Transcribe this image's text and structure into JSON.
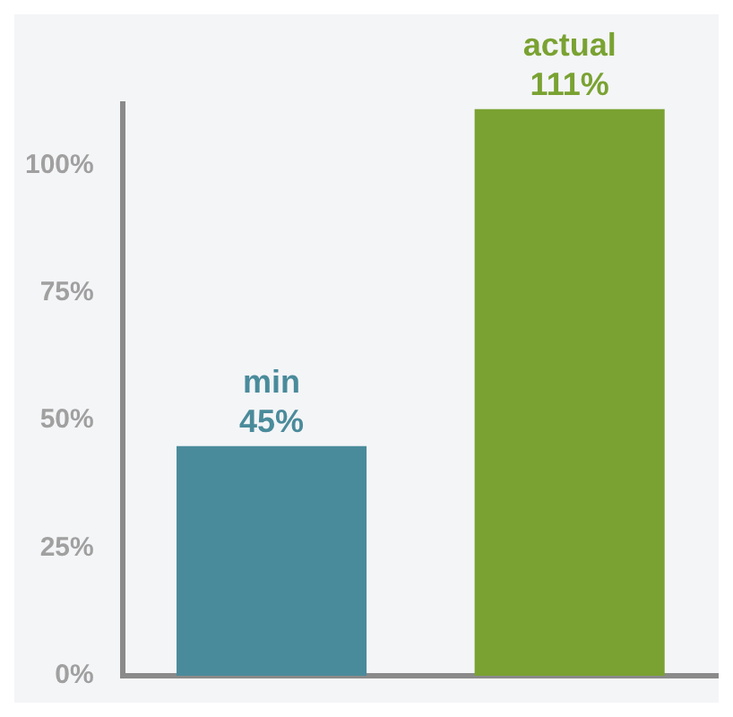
{
  "chart_data": {
    "type": "bar",
    "categories": [
      "min",
      "actual"
    ],
    "values": [
      45,
      111
    ],
    "colors": [
      "#4a8b9b",
      "#7aa232"
    ],
    "value_labels": [
      "45%",
      "111%"
    ],
    "ylim": [
      0,
      112
    ],
    "yticks": [
      {
        "value": 0,
        "label": "0%"
      },
      {
        "value": 25,
        "label": "25%"
      },
      {
        "value": 50,
        "label": "50%"
      },
      {
        "value": 75,
        "label": "75%"
      },
      {
        "value": 100,
        "label": "100%"
      }
    ],
    "tick_labels": "y",
    "grid": false,
    "legend": false
  }
}
